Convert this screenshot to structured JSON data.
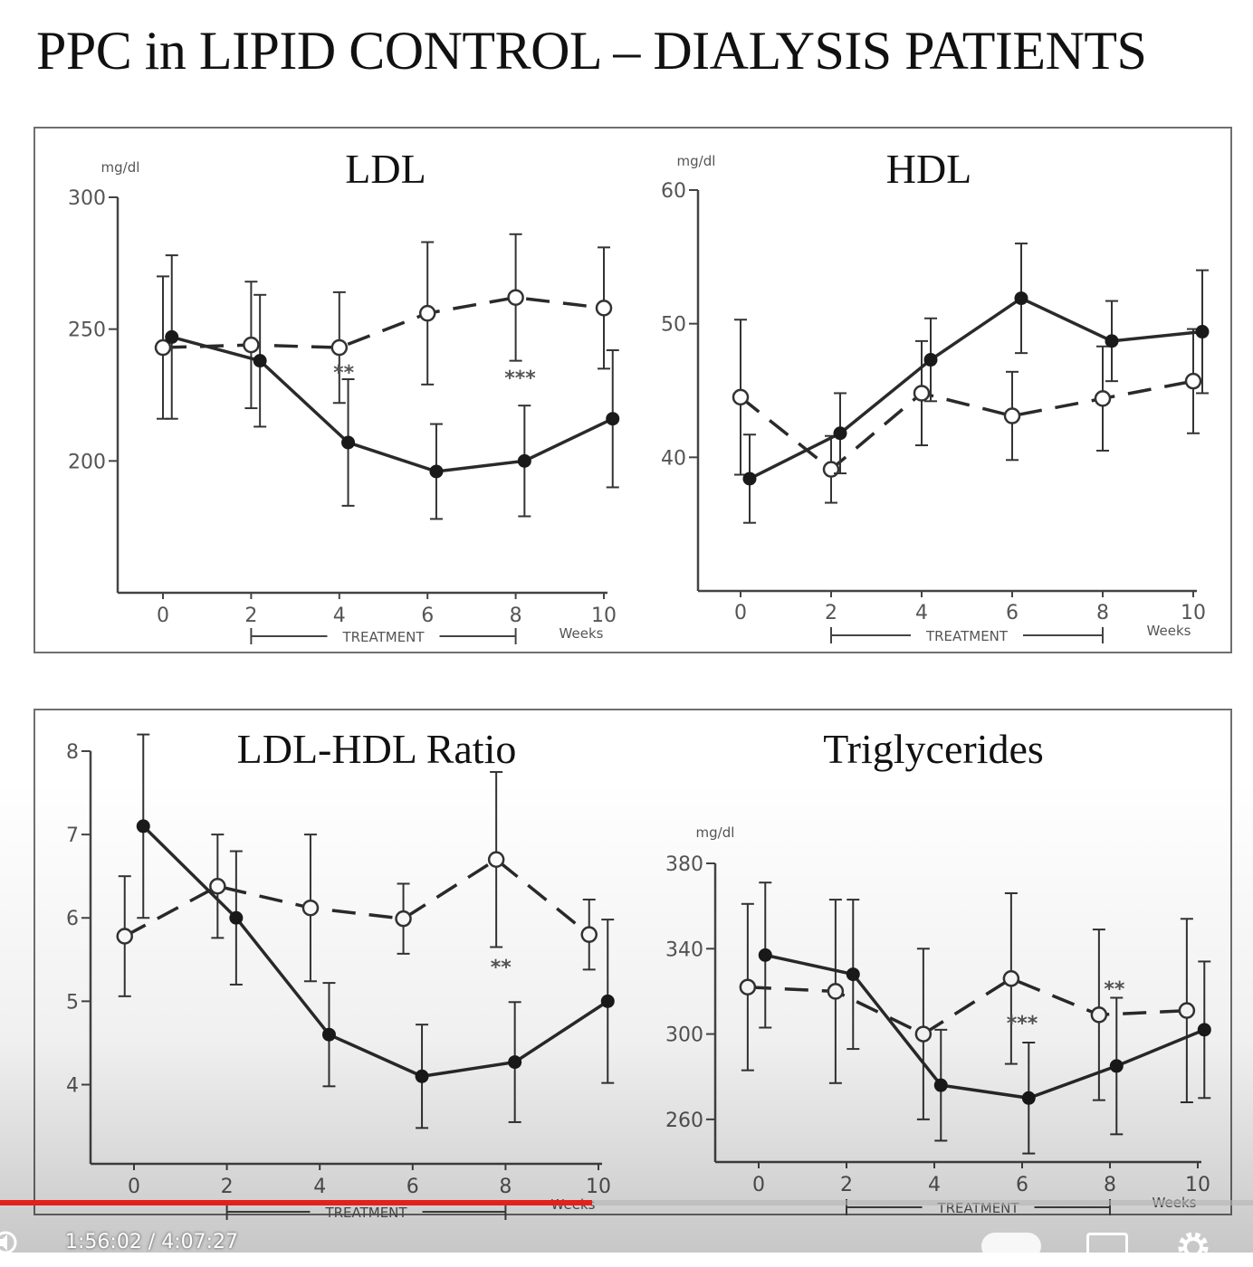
{
  "slide": {
    "title": "PPC in LIPID CONTROL – DIALYSIS PATIENTS"
  },
  "chart_data": [
    {
      "id": "ldl",
      "type": "line",
      "title": "LDL",
      "unit_label": "mg/dl",
      "xlabel": "Weeks",
      "treatment_label": "TREATMENT",
      "treatment_range": [
        2,
        8
      ],
      "x_ticks": [
        0,
        2,
        4,
        6,
        8,
        10
      ],
      "y_ticks": [
        200,
        250,
        300
      ],
      "ylim": [
        150,
        300
      ],
      "series": [
        {
          "style": "dashed-open-circle",
          "points": [
            [
              0,
              243,
              27
            ],
            [
              2,
              244,
              24
            ],
            [
              4,
              243,
              21
            ],
            [
              6,
              256,
              27
            ],
            [
              8,
              262,
              24
            ],
            [
              10,
              258,
              23
            ]
          ]
        },
        {
          "style": "solid-filled-circle",
          "points": [
            [
              0.2,
              247,
              31
            ],
            [
              2.2,
              238,
              25
            ],
            [
              4.2,
              207,
              24
            ],
            [
              6.2,
              196,
              18
            ],
            [
              8.2,
              200,
              21
            ],
            [
              10.2,
              216,
              26
            ]
          ]
        }
      ],
      "annotations": [
        {
          "text": "**",
          "x": 4.1,
          "y": 231
        },
        {
          "text": "***",
          "x": 8.1,
          "y": 229
        }
      ]
    },
    {
      "id": "hdl",
      "type": "line",
      "title": "HDL",
      "unit_label": "mg/dl",
      "xlabel": "Weeks",
      "treatment_label": "TREATMENT",
      "treatment_range": [
        2,
        8
      ],
      "x_ticks": [
        0,
        2,
        4,
        6,
        8,
        10
      ],
      "y_ticks": [
        40,
        50,
        60
      ],
      "ylim": [
        30,
        60
      ],
      "series": [
        {
          "style": "dashed-open-circle",
          "points": [
            [
              0,
              44.5,
              5.8
            ],
            [
              2,
              39.1,
              2.5
            ],
            [
              4,
              44.8,
              3.9
            ],
            [
              6,
              43.1,
              3.3
            ],
            [
              8,
              44.4,
              3.9
            ],
            [
              10,
              45.7,
              3.9
            ]
          ]
        },
        {
          "style": "solid-filled-circle",
          "points": [
            [
              0.2,
              38.4,
              3.3
            ],
            [
              2.2,
              41.8,
              3.0
            ],
            [
              4.2,
              47.3,
              3.1
            ],
            [
              6.2,
              51.9,
              4.1
            ],
            [
              8.2,
              48.7,
              3.0
            ],
            [
              10.2,
              49.4,
              4.6
            ]
          ]
        }
      ],
      "annotations": []
    },
    {
      "id": "ldl-hdl-ratio",
      "type": "line",
      "title": "LDL-HDL Ratio",
      "unit_label": "",
      "xlabel": "Weeks",
      "treatment_label": "TREATMENT",
      "treatment_range": [
        2,
        8
      ],
      "x_ticks": [
        0,
        2,
        4,
        6,
        8,
        10
      ],
      "y_ticks": [
        4,
        5,
        6,
        7,
        8
      ],
      "ylim": [
        3.05,
        8
      ],
      "series": [
        {
          "style": "dashed-open-circle",
          "points": [
            [
              -0.2,
              5.78,
              0.72
            ],
            [
              1.8,
              6.38,
              0.62
            ],
            [
              3.8,
              6.12,
              0.88
            ],
            [
              5.8,
              5.99,
              0.42
            ],
            [
              7.8,
              6.7,
              1.05
            ],
            [
              9.8,
              5.8,
              0.42
            ]
          ]
        },
        {
          "style": "solid-filled-circle",
          "points": [
            [
              0.2,
              7.1,
              1.1
            ],
            [
              2.2,
              6.0,
              0.8
            ],
            [
              4.2,
              4.6,
              0.62
            ],
            [
              6.2,
              4.1,
              0.62
            ],
            [
              8.2,
              4.27,
              0.72
            ],
            [
              10.2,
              5.0,
              0.98
            ]
          ]
        }
      ],
      "annotations": [
        {
          "text": "**",
          "x": 7.9,
          "y": 5.33
        }
      ]
    },
    {
      "id": "triglycerides",
      "type": "line",
      "title": "Triglycerides",
      "unit_label": "mg/dl",
      "xlabel": "Weeks",
      "treatment_label": "TREATMENT",
      "treatment_range": [
        2,
        8
      ],
      "x_ticks": [
        0,
        2,
        4,
        6,
        8,
        10
      ],
      "y_ticks": [
        260,
        300,
        340,
        380
      ],
      "ylim": [
        240,
        380
      ],
      "series": [
        {
          "style": "dashed-open-circle",
          "points": [
            [
              -0.25,
              322,
              39
            ],
            [
              1.75,
              320,
              43
            ],
            [
              3.75,
              300,
              40
            ],
            [
              5.75,
              326,
              40
            ],
            [
              7.75,
              309,
              40
            ],
            [
              9.75,
              311,
              43
            ]
          ]
        },
        {
          "style": "solid-filled-circle",
          "points": [
            [
              0.15,
              337,
              34
            ],
            [
              2.15,
              328,
              35
            ],
            [
              4.15,
              276,
              26
            ],
            [
              6.15,
              270,
              26
            ],
            [
              8.15,
              285,
              32
            ],
            [
              10.15,
              302,
              32
            ]
          ]
        }
      ],
      "annotations": [
        {
          "text": "***",
          "x": 6.0,
          "y": 302
        },
        {
          "text": "**",
          "x": 8.1,
          "y": 318
        }
      ]
    }
  ],
  "player": {
    "time": "1:56:02 / 4:07:27",
    "progress_fraction": 0.4725,
    "accent_color": "#e3201b",
    "icons": [
      "volume-icon",
      "autoplay-toggle",
      "cc-icon",
      "settings-icon"
    ]
  }
}
